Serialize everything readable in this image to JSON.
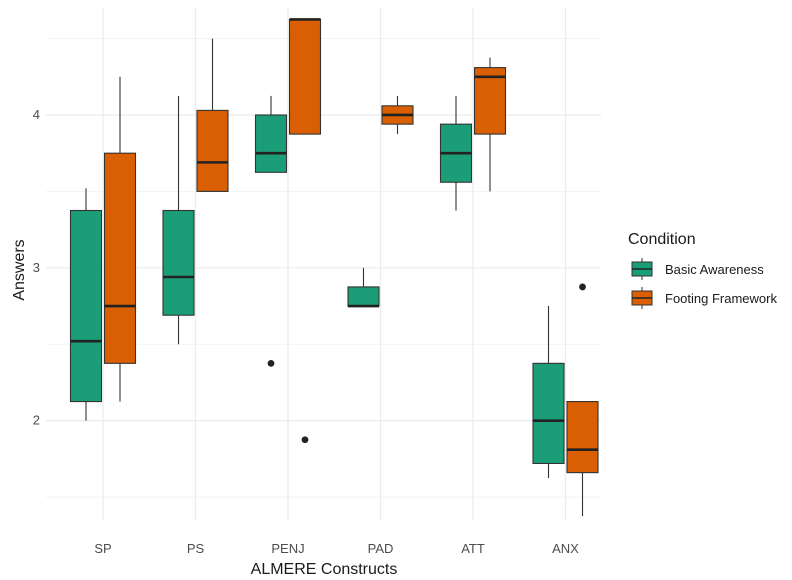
{
  "chart_data": {
    "type": "box",
    "xlabel": "ALMERE Constructs",
    "ylabel": "Answers",
    "categories": [
      "SP",
      "PS",
      "PENJ",
      "PAD",
      "ATT",
      "ANX"
    ],
    "ylim": [
      1.35,
      4.7
    ],
    "yticks": [
      2,
      3,
      4
    ],
    "grid": true,
    "legend": {
      "title": "Condition",
      "position": "right"
    },
    "series": [
      {
        "name": "Basic Awareness",
        "color": "#1b9e77",
        "boxes": [
          {
            "category": "SP",
            "min": 2.0,
            "q1": 2.125,
            "median": 2.52,
            "q3": 3.375,
            "max": 3.52,
            "outliers": []
          },
          {
            "category": "PS",
            "min": 2.5,
            "q1": 2.69,
            "median": 2.94,
            "q3": 3.375,
            "max": 4.125,
            "outliers": []
          },
          {
            "category": "PENJ",
            "min": 3.625,
            "q1": 3.625,
            "median": 3.75,
            "q3": 4.0,
            "max": 4.125,
            "outliers": [
              2.375
            ]
          },
          {
            "category": "PAD",
            "min": 2.75,
            "q1": 2.75,
            "median": 2.75,
            "q3": 2.875,
            "max": 3.0,
            "outliers": []
          },
          {
            "category": "ATT",
            "min": 3.375,
            "q1": 3.56,
            "median": 3.75,
            "q3": 3.94,
            "max": 4.125,
            "outliers": []
          },
          {
            "category": "ANX",
            "min": 1.625,
            "q1": 1.72,
            "median": 2.0,
            "q3": 2.375,
            "max": 2.75,
            "outliers": []
          }
        ]
      },
      {
        "name": "Footing Framework",
        "color": "#d95f02",
        "boxes": [
          {
            "category": "SP",
            "min": 2.125,
            "q1": 2.375,
            "median": 2.75,
            "q3": 3.75,
            "max": 4.25,
            "outliers": []
          },
          {
            "category": "PS",
            "min": 3.5,
            "q1": 3.5,
            "median": 3.69,
            "q3": 4.03,
            "max": 4.5,
            "outliers": []
          },
          {
            "category": "PENJ",
            "min": 3.875,
            "q1": 3.875,
            "median": 4.625,
            "q3": 4.625,
            "max": 4.625,
            "outliers": [
              1.875
            ]
          },
          {
            "category": "PAD",
            "min": 3.875,
            "q1": 3.94,
            "median": 4.0,
            "q3": 4.06,
            "max": 4.125,
            "outliers": []
          },
          {
            "category": "ATT",
            "min": 3.5,
            "q1": 3.875,
            "median": 4.25,
            "q3": 4.31,
            "max": 4.375,
            "outliers": []
          },
          {
            "category": "ANX",
            "min": 1.375,
            "q1": 1.66,
            "median": 1.81,
            "q3": 2.125,
            "max": 2.125,
            "outliers": [
              2.875
            ]
          }
        ]
      }
    ]
  }
}
